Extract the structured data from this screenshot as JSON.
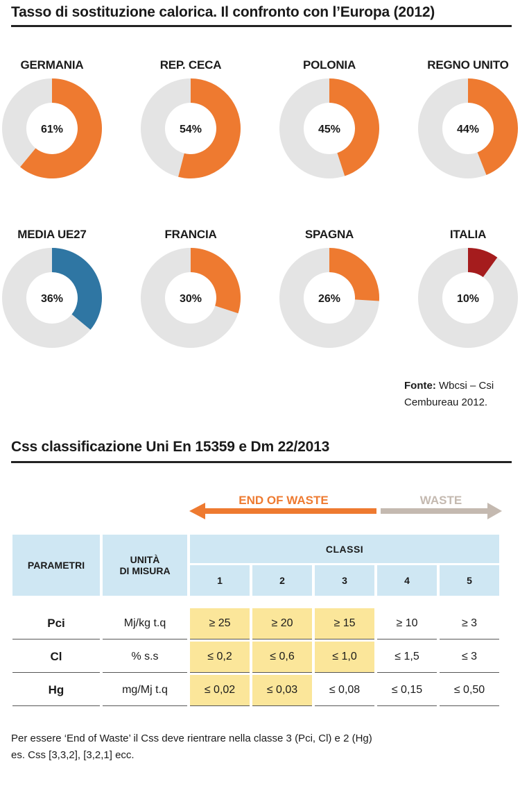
{
  "title1": "Tasso di sostituzione calorica. Il confronto con l’Europa (2012)",
  "colors": {
    "orange": "#ee7a30",
    "blue": "#2f76a3",
    "red": "#a51c1d",
    "track": "#e4e4e4",
    "waste": "#c4b9b0",
    "highlight": "#fbe69a",
    "header": "#cfe7f3"
  },
  "chart_data": {
    "type": "donut",
    "title": "Tasso di sostituzione calorica. Il confronto con l’Europa (2012)",
    "unit": "%",
    "items": [
      {
        "label": "GERMANIA",
        "value": 61,
        "display": "61%",
        "color": "#ee7a30"
      },
      {
        "label": "REP. CECA",
        "value": 54,
        "display": "54%",
        "color": "#ee7a30"
      },
      {
        "label": "POLONIA",
        "value": 45,
        "display": "45%",
        "color": "#ee7a30"
      },
      {
        "label": "REGNO UNITO",
        "value": 44,
        "display": "44%",
        "color": "#ee7a30"
      },
      {
        "label": "MEDIA UE27",
        "value": 36,
        "display": "36%",
        "color": "#2f76a3"
      },
      {
        "label": "FRANCIA",
        "value": 30,
        "display": "30%",
        "color": "#ee7a30"
      },
      {
        "label": "SPAGNA",
        "value": 26,
        "display": "26%",
        "color": "#ee7a30"
      },
      {
        "label": "ITALIA",
        "value": 10,
        "display": "10%",
        "color": "#a51c1d"
      }
    ]
  },
  "source": {
    "label": "Fonte:",
    "line1": "Wbcsi – Csi",
    "line2": "Cembureau 2012."
  },
  "title2": "Css classificazione Uni En 15359 e Dm 22/2013",
  "arrows": {
    "end_of_waste": "END OF WASTE",
    "waste": "WASTE"
  },
  "table": {
    "h_param": "PARAMETRI",
    "h_unit_1": "UNITÀ",
    "h_unit_2": "DI MISURA",
    "h_classes": "CLASSI",
    "class_numbers": [
      "1",
      "2",
      "3",
      "4",
      "5"
    ],
    "rows": [
      {
        "param": "Pci",
        "unit": "Mj/kg t.q",
        "values": [
          "≥ 25",
          "≥ 20",
          "≥ 15",
          "≥ 10",
          "≥ 3"
        ],
        "ok_count": 3
      },
      {
        "param": "Cl",
        "unit": "% s.s",
        "values": [
          "≤ 0,2",
          "≤ 0,6",
          "≤ 1,0",
          "≤ 1,5",
          "≤ 3"
        ],
        "ok_count": 3
      },
      {
        "param": "Hg",
        "unit": "mg/Mj t.q",
        "values": [
          "≤ 0,02",
          "≤ 0,03",
          "≤ 0,08",
          "≤ 0,15",
          "≤ 0,50"
        ],
        "ok_count": 2
      }
    ]
  },
  "note": {
    "line1": "Per essere ‘End of Waste’ il Css deve rientrare nella classe 3 (Pci, Cl) e 2 (Hg)",
    "line2": "es. Css [3,3,2], [3,2,1] ecc."
  }
}
